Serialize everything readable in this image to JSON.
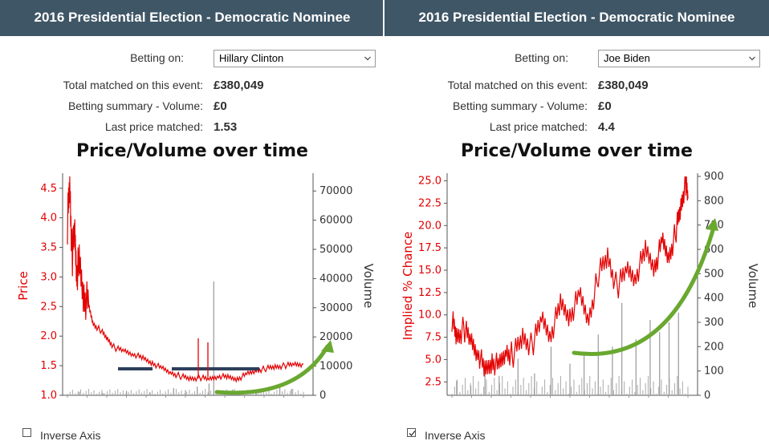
{
  "panels": [
    {
      "header": "2016 Presidential Election - Democratic Nominee",
      "betting_on_label": "Betting on:",
      "betting_on_value": "Hillary Clinton",
      "total_matched_label": "Total matched on this event:",
      "total_matched_value": "£380,049",
      "betting_summary_label": "Betting summary - Volume:",
      "betting_summary_value": "£0",
      "last_price_label": "Last price matched:",
      "last_price_value": "1.53",
      "chart_title": "Price/Volume over time",
      "inverse_axis_label": "Inverse Axis",
      "inverse_axis_checked": false
    },
    {
      "header": "2016 Presidential Election - Democratic Nominee",
      "betting_on_label": "Betting on:",
      "betting_on_value": "Joe Biden",
      "total_matched_label": "Total matched on this event:",
      "total_matched_value": "£380,049",
      "betting_summary_label": "Betting summary - Volume:",
      "betting_summary_value": "£0",
      "last_price_label": "Last price matched:",
      "last_price_value": "4.4",
      "chart_title": "Price/Volume over time",
      "inverse_axis_label": "Inverse Axis",
      "inverse_axis_checked": true
    }
  ],
  "chart_data": [
    {
      "type": "line",
      "title": "Price/Volume over time",
      "ylabel": "Price",
      "y2label": "Volume",
      "ylim": [
        1.0,
        4.7
      ],
      "y2lim": [
        0,
        75000
      ],
      "yticks": [
        "1.0",
        "1.5",
        "2.0",
        "2.5",
        "3.0",
        "3.5",
        "4.0",
        "4.5"
      ],
      "y2ticks": [
        "0",
        "10000",
        "20000",
        "30000",
        "40000",
        "50000",
        "60000",
        "70000"
      ],
      "colors": {
        "price": "#e30000",
        "volume": "#999999",
        "annotation_lines": "#2e3f5c",
        "arrow": "#6aa830"
      },
      "series": [
        {
          "name": "Price",
          "x": [
            0,
            0.01,
            0.02,
            0.03,
            0.04,
            0.05,
            0.07,
            0.09,
            0.11,
            0.14,
            0.17,
            0.2,
            0.24,
            0.28,
            0.32,
            0.36,
            0.4,
            0.44,
            0.48,
            0.52,
            0.56,
            0.6,
            0.64,
            0.68,
            0.72,
            0.76,
            0.8,
            0.84,
            0.88,
            0.92,
            0.96,
            1.0
          ],
          "values": [
            3.9,
            4.6,
            3.3,
            3.8,
            3.1,
            3.2,
            2.7,
            2.5,
            2.2,
            2.1,
            1.95,
            1.8,
            1.75,
            1.7,
            1.62,
            1.55,
            1.45,
            1.38,
            1.32,
            1.28,
            1.3,
            1.27,
            1.33,
            1.3,
            1.28,
            1.35,
            1.42,
            1.45,
            1.48,
            1.5,
            1.52,
            1.53
          ]
        },
        {
          "name": "Volume",
          "x": [
            0.05,
            0.15,
            0.25,
            0.35,
            0.45,
            0.5,
            0.55,
            0.6,
            0.62,
            0.7,
            0.8,
            0.9,
            0.95
          ],
          "values": [
            1200,
            800,
            1500,
            1000,
            2500,
            1800,
            3000,
            4000,
            39000,
            2000,
            1500,
            3000,
            2200
          ]
        }
      ]
    },
    {
      "type": "line",
      "title": "Price/Volume over time",
      "ylabel": "Implied % Chance",
      "y2label": "Volume",
      "ylim": [
        1.0,
        25.5
      ],
      "y2lim": [
        0,
        900
      ],
      "yticks": [
        "2.5",
        "5.0",
        "7.5",
        "10.0",
        "12.5",
        "15.0",
        "17.5",
        "20.0",
        "22.5",
        "25.0"
      ],
      "y2ticks": [
        "0",
        "100",
        "200",
        "300",
        "400",
        "500",
        "600",
        "700",
        "800",
        "900"
      ],
      "colors": {
        "price": "#e30000",
        "volume": "#999999",
        "arrow": "#6aa830"
      },
      "series": [
        {
          "name": "Implied % Chance",
          "x": [
            0,
            0.02,
            0.05,
            0.08,
            0.11,
            0.14,
            0.17,
            0.2,
            0.23,
            0.26,
            0.3,
            0.34,
            0.38,
            0.42,
            0.46,
            0.5,
            0.54,
            0.58,
            0.62,
            0.66,
            0.7,
            0.74,
            0.78,
            0.82,
            0.86,
            0.89,
            0.92,
            0.95,
            0.97,
            0.99,
            1.0
          ],
          "values": [
            9.5,
            7.5,
            8.5,
            7.0,
            6.0,
            3.5,
            5.0,
            4.0,
            6.0,
            5.5,
            7.5,
            6.5,
            9.5,
            8.0,
            11.0,
            10.0,
            12.0,
            9.5,
            14.5,
            16.5,
            13.0,
            15.0,
            14.5,
            17.0,
            15.5,
            18.0,
            16.5,
            19.5,
            22.0,
            25.0,
            23.0
          ]
        },
        {
          "name": "Volume",
          "x": [
            0.02,
            0.08,
            0.14,
            0.2,
            0.28,
            0.35,
            0.42,
            0.5,
            0.56,
            0.62,
            0.68,
            0.72,
            0.78,
            0.84,
            0.88,
            0.92,
            0.96
          ],
          "values": [
            60,
            40,
            120,
            80,
            150,
            90,
            200,
            130,
            180,
            250,
            200,
            380,
            230,
            310,
            260,
            300,
            340
          ]
        }
      ]
    }
  ]
}
